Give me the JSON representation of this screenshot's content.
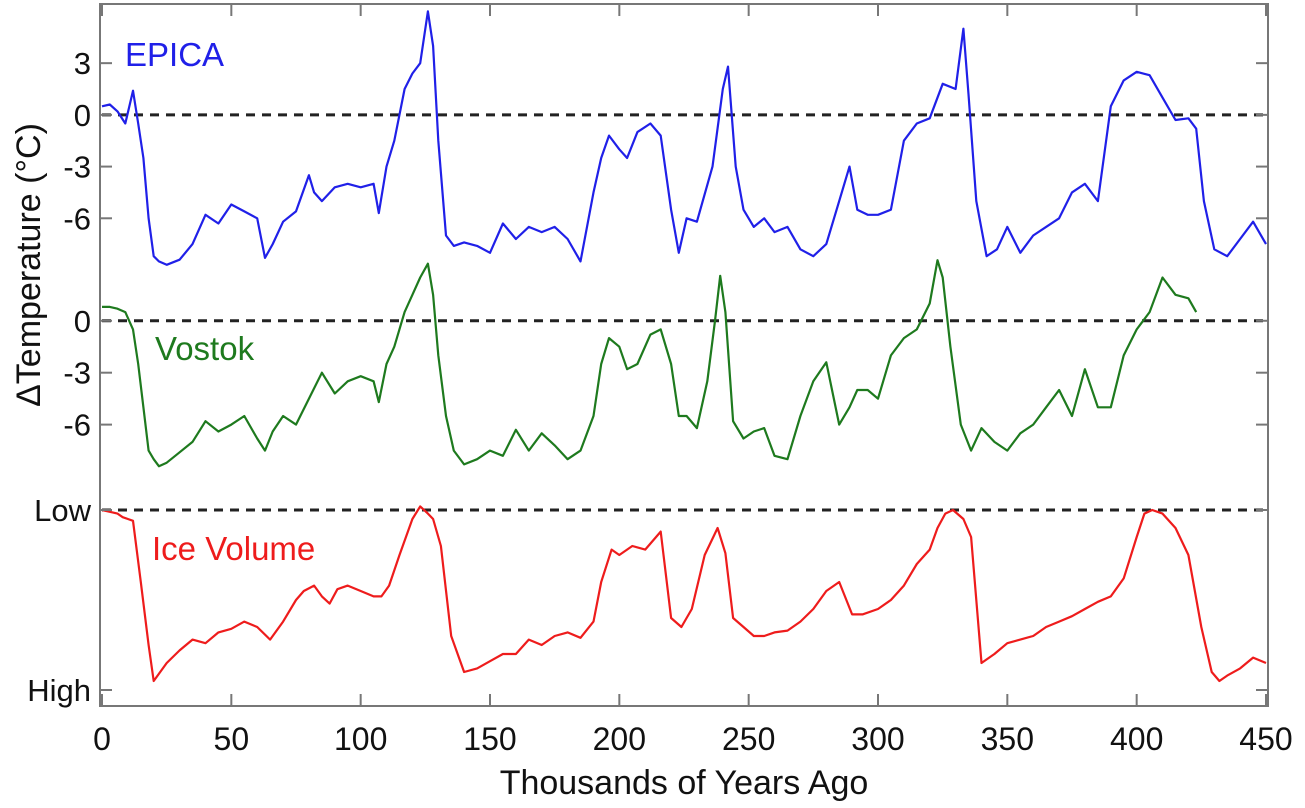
{
  "chart_data": {
    "type": "line",
    "xlabel": "Thousands of Years Ago",
    "ylabel": "ΔTemperature (°C)",
    "xlim": [
      0,
      450
    ],
    "x_ticks": [
      "0",
      "50",
      "100",
      "150",
      "200",
      "250",
      "300",
      "350",
      "400",
      "450"
    ],
    "grid": false,
    "panels": [
      {
        "name": "EPICA",
        "color": "#2020e8",
        "y_ticks": [
          "3",
          "0",
          "-3",
          "-6"
        ],
        "baseline": "0",
        "ylim": [
          -9,
          6.2
        ],
        "x": [
          0,
          3,
          6,
          9,
          12,
          14,
          16,
          18,
          20,
          22,
          25,
          30,
          35,
          40,
          45,
          50,
          55,
          60,
          63,
          66,
          70,
          75,
          80,
          82,
          85,
          90,
          95,
          100,
          105,
          107,
          110,
          113,
          117,
          120,
          123,
          126,
          128,
          130,
          133,
          136,
          140,
          145,
          150,
          155,
          160,
          165,
          170,
          175,
          180,
          185,
          190,
          193,
          196,
          200,
          203,
          207,
          212,
          216,
          220,
          223,
          226,
          230,
          236,
          240,
          242,
          245,
          248,
          252,
          256,
          260,
          265,
          270,
          275,
          280,
          285,
          289,
          292,
          296,
          300,
          305,
          310,
          315,
          320,
          325,
          330,
          333,
          335,
          338,
          342,
          346,
          350,
          355,
          360,
          365,
          370,
          375,
          380,
          385,
          390,
          395,
          400,
          405,
          410,
          415,
          420,
          423,
          426,
          430,
          435,
          440,
          445,
          450
        ],
        "y": [
          0.5,
          0.6,
          0.2,
          -0.5,
          1.4,
          -0.5,
          -2.5,
          -6,
          -8.2,
          -8.5,
          -8.7,
          -8.4,
          -7.5,
          -5.8,
          -6.3,
          -5.2,
          -5.6,
          -6.0,
          -8.3,
          -7.5,
          -6.2,
          -5.6,
          -3.5,
          -4.5,
          -5.0,
          -4.2,
          -4.0,
          -4.2,
          -4.0,
          -5.7,
          -3.0,
          -1.5,
          1.5,
          2.4,
          3.0,
          6.0,
          4.0,
          -1.5,
          -7.0,
          -7.6,
          -7.4,
          -7.6,
          -8.0,
          -6.3,
          -7.2,
          -6.5,
          -6.8,
          -6.5,
          -7.2,
          -8.5,
          -4.5,
          -2.5,
          -1.2,
          -2.0,
          -2.5,
          -1.0,
          -0.5,
          -1.2,
          -5.5,
          -8.0,
          -6.0,
          -6.2,
          -3.0,
          1.5,
          2.8,
          -3.0,
          -5.5,
          -6.5,
          -6.0,
          -6.8,
          -6.5,
          -7.8,
          -8.2,
          -7.5,
          -5.0,
          -3.0,
          -5.5,
          -5.8,
          -5.8,
          -5.5,
          -1.5,
          -0.5,
          -0.2,
          1.8,
          1.5,
          5.0,
          1.2,
          -5.0,
          -8.2,
          -7.8,
          -6.5,
          -8.0,
          -7.0,
          -6.5,
          -6.0,
          -4.5,
          -4.0,
          -5.0,
          0.5,
          2.0,
          2.5,
          2.3,
          1.0,
          -0.3,
          -0.2,
          -0.8,
          -5.0,
          -7.8,
          -8.2,
          -7.2,
          -6.2,
          -7.5
        ]
      },
      {
        "name": "Vostok",
        "color": "#1e7a1e",
        "y_ticks": [
          "0",
          "-3",
          "-6"
        ],
        "baseline": "0",
        "ylim": [
          -9.2,
          3.8
        ],
        "x": [
          0,
          3,
          6,
          9,
          12,
          14,
          16,
          18,
          20,
          22,
          25,
          30,
          35,
          40,
          45,
          50,
          55,
          60,
          63,
          66,
          70,
          75,
          80,
          85,
          90,
          95,
          100,
          105,
          107,
          110,
          113,
          117,
          120,
          123,
          126,
          128,
          130,
          133,
          136,
          140,
          145,
          150,
          155,
          160,
          165,
          170,
          175,
          180,
          185,
          190,
          193,
          196,
          200,
          203,
          207,
          212,
          216,
          220,
          223,
          226,
          230,
          234,
          237,
          239,
          241,
          244,
          248,
          252,
          256,
          260,
          265,
          270,
          275,
          280,
          285,
          289,
          292,
          296,
          300,
          305,
          310,
          315,
          320,
          323,
          325,
          328,
          332,
          336,
          340,
          345,
          350,
          355,
          360,
          365,
          370,
          375,
          380,
          385,
          390,
          395,
          400,
          405,
          410,
          415,
          420,
          423
        ],
        "y": [
          0.8,
          0.8,
          0.7,
          0.5,
          -0.5,
          -2.5,
          -5,
          -7.5,
          -8,
          -8.4,
          -8.2,
          -7.6,
          -7,
          -5.8,
          -6.4,
          -6.0,
          -5.5,
          -6.8,
          -7.5,
          -6.4,
          -5.5,
          -6.0,
          -4.5,
          -3.0,
          -4.2,
          -3.5,
          -3.2,
          -3.5,
          -4.7,
          -2.5,
          -1.5,
          0.5,
          1.5,
          2.5,
          3.3,
          1.5,
          -2.0,
          -5.5,
          -7.5,
          -8.3,
          -8.0,
          -7.5,
          -7.8,
          -6.3,
          -7.5,
          -6.5,
          -7.2,
          -8.0,
          -7.5,
          -5.5,
          -2.5,
          -1.0,
          -1.5,
          -2.8,
          -2.5,
          -0.8,
          -0.5,
          -2.5,
          -5.5,
          -5.5,
          -6.2,
          -3.5,
          0.0,
          2.6,
          0.5,
          -5.8,
          -6.8,
          -6.4,
          -6.2,
          -7.8,
          -8.0,
          -5.5,
          -3.5,
          -2.4,
          -6.0,
          -5.0,
          -4.0,
          -4.0,
          -4.5,
          -2.0,
          -1.0,
          -0.5,
          1.0,
          3.5,
          2.5,
          -1.5,
          -6.0,
          -7.5,
          -6.2,
          -7.0,
          -7.5,
          -6.5,
          -6.0,
          -5.0,
          -4.0,
          -5.5,
          -2.8,
          -5.0,
          -5.0,
          -2.0,
          -0.5,
          0.5,
          2.5,
          1.5,
          1.3,
          0.5
        ]
      },
      {
        "name": "Ice Volume",
        "color": "#ee1c1c",
        "y_ticks": [
          "Low",
          "High"
        ],
        "baseline": "Low",
        "ylim": [
          0,
          1
        ],
        "x": [
          0,
          3,
          6,
          8,
          10,
          12,
          15,
          18,
          20,
          25,
          30,
          35,
          40,
          45,
          50,
          55,
          60,
          65,
          70,
          75,
          78,
          82,
          85,
          88,
          91,
          95,
          100,
          105,
          108,
          111,
          115,
          120,
          123,
          126,
          128,
          131,
          135,
          140,
          145,
          150,
          155,
          160,
          165,
          170,
          175,
          180,
          185,
          190,
          193,
          197,
          200,
          205,
          210,
          216,
          220,
          224,
          228,
          233,
          238,
          241,
          244,
          248,
          252,
          256,
          260,
          265,
          270,
          275,
          280,
          285,
          290,
          294,
          300,
          305,
          310,
          315,
          320,
          323,
          326,
          329,
          333,
          336,
          340,
          345,
          350,
          355,
          360,
          365,
          370,
          375,
          380,
          385,
          390,
          395,
          400,
          403,
          406,
          410,
          415,
          420,
          425,
          429,
          432,
          435,
          440,
          445,
          450
        ],
        "y": [
          1.0,
          0.99,
          0.98,
          0.96,
          0.95,
          0.94,
          0.6,
          0.25,
          0.05,
          0.15,
          0.22,
          0.28,
          0.26,
          0.32,
          0.34,
          0.38,
          0.35,
          0.28,
          0.38,
          0.5,
          0.55,
          0.58,
          0.52,
          0.48,
          0.56,
          0.58,
          0.55,
          0.52,
          0.52,
          0.58,
          0.75,
          0.95,
          1.02,
          0.98,
          0.95,
          0.8,
          0.3,
          0.1,
          0.12,
          0.16,
          0.2,
          0.2,
          0.28,
          0.25,
          0.3,
          0.32,
          0.29,
          0.38,
          0.6,
          0.78,
          0.75,
          0.8,
          0.78,
          0.88,
          0.4,
          0.35,
          0.45,
          0.75,
          0.9,
          0.76,
          0.4,
          0.35,
          0.3,
          0.3,
          0.32,
          0.33,
          0.38,
          0.45,
          0.55,
          0.6,
          0.42,
          0.42,
          0.45,
          0.5,
          0.58,
          0.7,
          0.78,
          0.9,
          0.98,
          1.0,
          0.95,
          0.85,
          0.15,
          0.2,
          0.26,
          0.28,
          0.3,
          0.35,
          0.38,
          0.41,
          0.45,
          0.49,
          0.52,
          0.62,
          0.85,
          0.98,
          1.0,
          0.98,
          0.9,
          0.75,
          0.35,
          0.1,
          0.05,
          0.08,
          0.12,
          0.18,
          0.15
        ]
      }
    ]
  }
}
